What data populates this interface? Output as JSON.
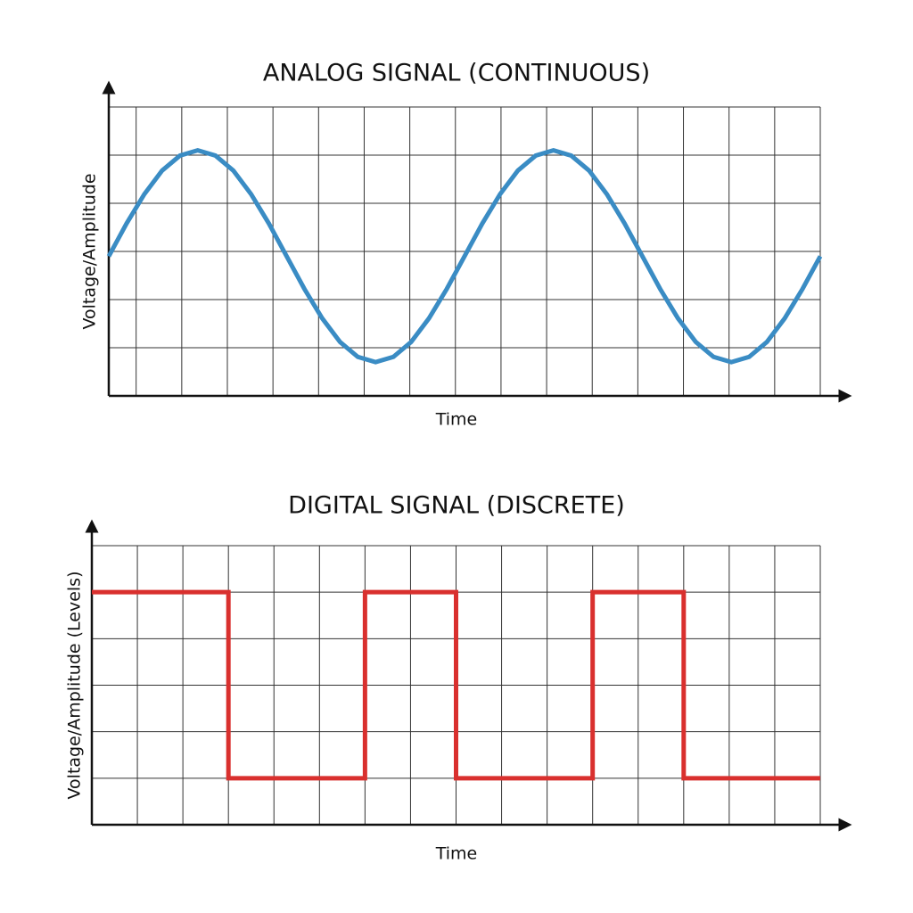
{
  "chart_data": [
    {
      "type": "line",
      "title": "ANALOG SIGNAL (CONTINUOUS)",
      "x_label": "Time",
      "y_label": "Voltage/Amplitude",
      "x": [
        -0.6,
        -0.21,
        0.18,
        0.57,
        0.96,
        1.35,
        1.74,
        2.13,
        2.52,
        2.91,
        3.3,
        3.69,
        4.08,
        4.47,
        4.86,
        5.25,
        5.64,
        6.03,
        6.42,
        6.81,
        7.2,
        7.59,
        7.98,
        8.37,
        8.76,
        9.15,
        9.54,
        9.93,
        10.32,
        10.71,
        11.1,
        11.49,
        11.88,
        12.27,
        12.66,
        13.05,
        13.44,
        13.83,
        14.22,
        14.61,
        15.0
      ],
      "values": [
        2.9,
        3.58,
        4.19,
        4.68,
        4.99,
        5.1,
        4.99,
        4.68,
        4.19,
        3.58,
        2.9,
        2.22,
        1.61,
        1.12,
        0.81,
        0.7,
        0.81,
        1.12,
        1.61,
        2.22,
        2.9,
        3.58,
        4.19,
        4.68,
        4.99,
        5.1,
        4.99,
        4.68,
        4.19,
        3.58,
        2.9,
        2.22,
        1.61,
        1.12,
        0.81,
        0.7,
        0.81,
        1.12,
        1.61,
        2.22,
        2.9
      ],
      "color": "#3a8cc4",
      "xlim": [
        -0.6,
        15
      ],
      "ylim": [
        0,
        6
      ],
      "xticks": [
        0,
        1,
        2,
        3,
        4,
        5,
        6,
        7,
        8,
        9,
        10,
        11,
        12,
        13,
        14,
        15
      ],
      "yticks": [
        1,
        2,
        3,
        4,
        5,
        6
      ],
      "grid": true
    },
    {
      "type": "line",
      "title": "DIGITAL SIGNAL (DISCRETE)",
      "x_label": "Time",
      "y_label": "Voltage/Amplitude (Levels)",
      "x": [
        -1,
        2,
        2,
        5,
        5,
        7,
        7,
        10,
        10,
        12,
        12,
        15
      ],
      "values": [
        5,
        5,
        1,
        1,
        5,
        5,
        1,
        1,
        5,
        5,
        1,
        1
      ],
      "color": "#d9302e",
      "xlim": [
        -1,
        15
      ],
      "ylim": [
        0,
        6
      ],
      "xticks": [
        0,
        1,
        2,
        3,
        4,
        5,
        6,
        7,
        8,
        9,
        10,
        11,
        12,
        13,
        14,
        15
      ],
      "yticks": [
        1,
        2,
        3,
        4,
        5,
        6
      ],
      "grid": true
    }
  ]
}
